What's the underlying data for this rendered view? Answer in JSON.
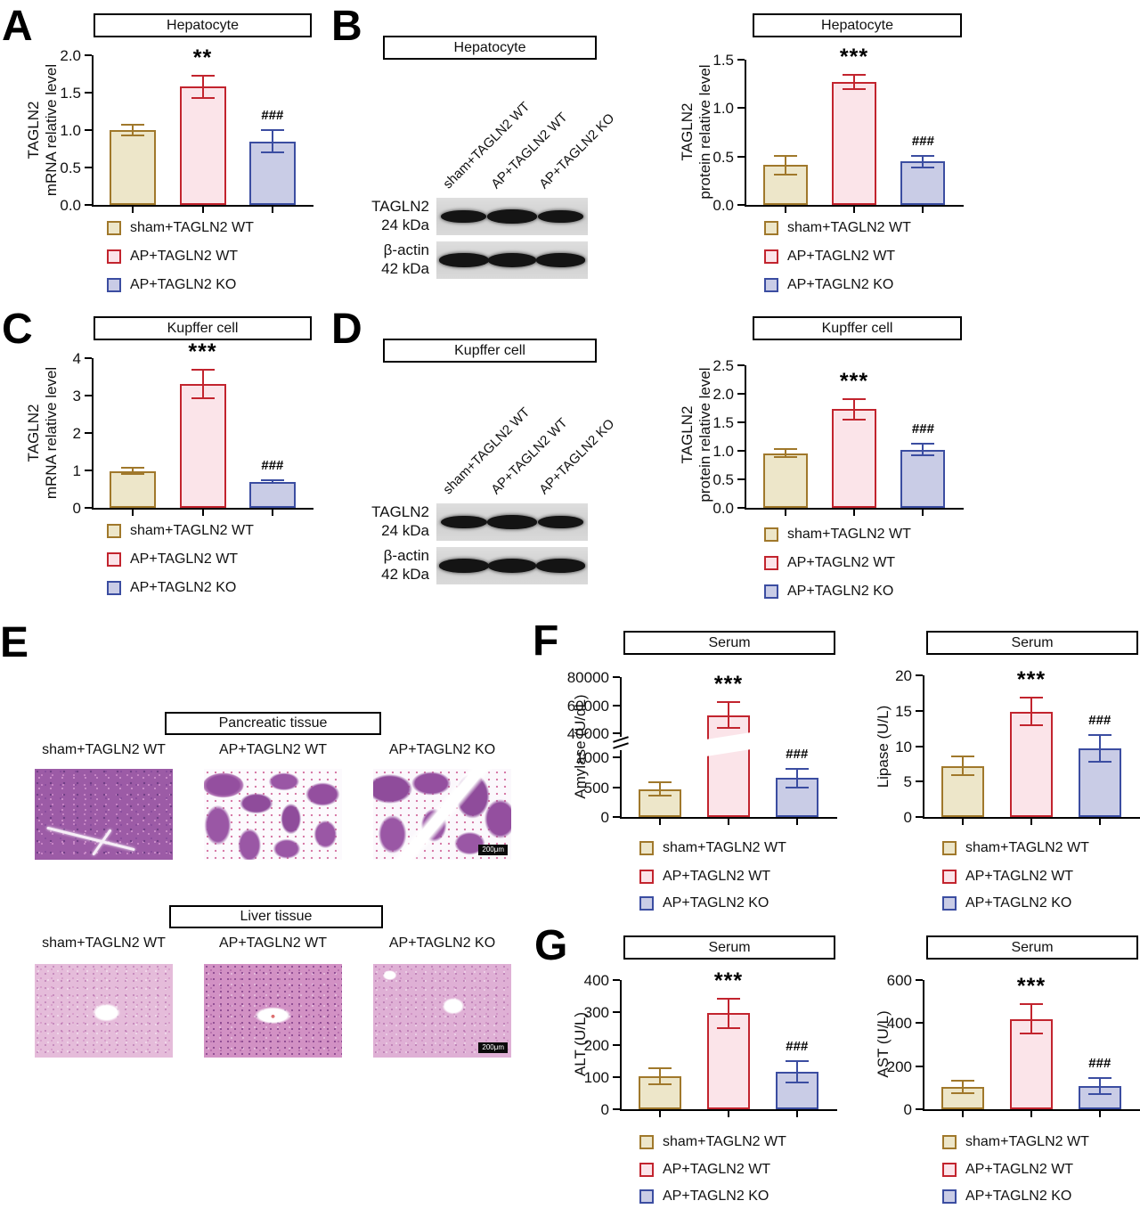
{
  "figure": {
    "panel_letters": {
      "A": "A",
      "B": "B",
      "C": "C",
      "D": "D",
      "E": "E",
      "F": "F",
      "G": "G"
    }
  },
  "groups": [
    {
      "label": "sham+TAGLN2 WT",
      "fill": "#EDE6C9",
      "border": "#A0782B"
    },
    {
      "label": "AP+TAGLN2 WT",
      "fill": "#FBE4E9",
      "border": "#C2242E"
    },
    {
      "label": "AP+TAGLN2 KO",
      "fill": "#C9CCE6",
      "border": "#3B4DA1"
    }
  ],
  "chart_data": [
    {
      "id": "A",
      "type": "bar",
      "title": "Hepatocyte",
      "ylabel_lines": [
        "TAGLN2",
        "mRNA relative level"
      ],
      "categories": [
        "sham+TAGLN2 WT",
        "AP+TAGLN2 WT",
        "AP+TAGLN2 KO"
      ],
      "values": [
        1.0,
        1.58,
        0.85
      ],
      "errors": [
        0.07,
        0.15,
        0.15
      ],
      "sig": [
        "",
        "**",
        "###"
      ],
      "yticks": [
        0,
        0.5,
        1,
        1.5,
        2
      ],
      "ytick_labels": [
        "0.0",
        "0.5",
        "1.0",
        "1.5",
        "2.0"
      ],
      "ylim": [
        0,
        2
      ],
      "legend_position": "bottom"
    },
    {
      "id": "B",
      "type": "bar",
      "title": "Hepatocyte",
      "ylabel_lines": [
        "TAGLN2",
        "protein relative level"
      ],
      "categories": [
        "sham+TAGLN2 WT",
        "AP+TAGLN2 WT",
        "AP+TAGLN2 KO"
      ],
      "values": [
        0.41,
        1.27,
        0.45
      ],
      "errors": [
        0.1,
        0.07,
        0.06
      ],
      "sig": [
        "",
        "***",
        "###"
      ],
      "yticks": [
        0,
        0.5,
        1,
        1.5
      ],
      "ytick_labels": [
        "0.0",
        "0.5",
        "1.0",
        "1.5"
      ],
      "ylim": [
        0,
        1.5
      ],
      "legend_position": "bottom"
    },
    {
      "id": "C",
      "type": "bar",
      "title": "Kupffer cell",
      "ylabel_lines": [
        "TAGLN2",
        "mRNA relative level"
      ],
      "categories": [
        "sham+TAGLN2 WT",
        "AP+TAGLN2 WT",
        "AP+TAGLN2 KO"
      ],
      "values": [
        0.98,
        3.3,
        0.7
      ],
      "errors": [
        0.08,
        0.38,
        0.04
      ],
      "sig": [
        "",
        "***",
        "###"
      ],
      "yticks": [
        0,
        1,
        2,
        3,
        4
      ],
      "ytick_labels": [
        "0",
        "1",
        "2",
        "3",
        "4"
      ],
      "ylim": [
        0,
        4
      ],
      "legend_position": "bottom"
    },
    {
      "id": "D",
      "type": "bar",
      "title": "Kupffer cell",
      "ylabel_lines": [
        "TAGLN2",
        "protein relative level"
      ],
      "categories": [
        "sham+TAGLN2 WT",
        "AP+TAGLN2 WT",
        "AP+TAGLN2 KO"
      ],
      "values": [
        0.96,
        1.73,
        1.02
      ],
      "errors": [
        0.07,
        0.18,
        0.1
      ],
      "sig": [
        "",
        "***",
        "###"
      ],
      "yticks": [
        0,
        0.5,
        1,
        1.5,
        2,
        2.5
      ],
      "ytick_labels": [
        "0.0",
        "0.5",
        "1.0",
        "1.5",
        "2.0",
        "2.5"
      ],
      "ylim": [
        0,
        2.5
      ],
      "legend_position": "bottom"
    },
    {
      "id": "F-amylase",
      "type": "bar",
      "title": "Serum",
      "ylabel_lines": [
        "Amylase (U/dL)"
      ],
      "categories": [
        "sham+TAGLN2 WT",
        "AP+TAGLN2 WT",
        "AP+TAGLN2 KO"
      ],
      "values": [
        470,
        53000,
        650
      ],
      "errors": [
        110,
        9000,
        150
      ],
      "sig": [
        "",
        "***",
        "###"
      ],
      "yticks": [
        0,
        500,
        1000,
        40000,
        60000,
        80000
      ],
      "ytick_labels": [
        "0",
        "500",
        "1000",
        "40000",
        "60000",
        "80000"
      ],
      "ylim": [
        0,
        80000
      ],
      "axis_break": {
        "lower_lim": [
          0,
          1000
        ],
        "upper_lim": [
          40000,
          80000
        ]
      },
      "legend_position": "bottom"
    },
    {
      "id": "F-lipase",
      "type": "bar",
      "title": "Serum",
      "ylabel_lines": [
        "Lipase (U/L)"
      ],
      "categories": [
        "sham+TAGLN2 WT",
        "AP+TAGLN2 WT",
        "AP+TAGLN2 KO"
      ],
      "values": [
        7.2,
        14.9,
        9.7
      ],
      "errors": [
        1.3,
        2.0,
        1.9
      ],
      "sig": [
        "",
        "***",
        "###"
      ],
      "yticks": [
        0,
        5,
        10,
        15,
        20
      ],
      "ytick_labels": [
        "0",
        "5",
        "10",
        "15",
        "20"
      ],
      "ylim": [
        0,
        20
      ],
      "legend_position": "bottom"
    },
    {
      "id": "G-alt",
      "type": "bar",
      "title": "Serum",
      "ylabel_lines": [
        "ALT (U/L)"
      ],
      "categories": [
        "sham+TAGLN2 WT",
        "AP+TAGLN2 WT",
        "AP+TAGLN2 KO"
      ],
      "values": [
        102,
        297,
        116
      ],
      "errors": [
        25,
        45,
        32
      ],
      "sig": [
        "",
        "***",
        "###"
      ],
      "yticks": [
        0,
        100,
        200,
        300,
        400
      ],
      "ytick_labels": [
        "0",
        "100",
        "200",
        "300",
        "400"
      ],
      "ylim": [
        0,
        400
      ],
      "legend_position": "bottom"
    },
    {
      "id": "G-ast",
      "type": "bar",
      "title": "Serum",
      "ylabel_lines": [
        "AST (U/L)"
      ],
      "categories": [
        "sham+TAGLN2 WT",
        "AP+TAGLN2 WT",
        "AP+TAGLN2 KO"
      ],
      "values": [
        103,
        420,
        107
      ],
      "errors": [
        30,
        68,
        38
      ],
      "sig": [
        "",
        "***",
        "###"
      ],
      "yticks": [
        0,
        200,
        400,
        600
      ],
      "ytick_labels": [
        "0",
        "200",
        "400",
        "600"
      ],
      "ylim": [
        0,
        600
      ],
      "legend_position": "bottom"
    }
  ],
  "blots": [
    {
      "panel": "B",
      "title": "Hepatocyte",
      "lane_labels": [
        "sham+TAGLN2 WT",
        "AP+TAGLN2 WT",
        "AP+TAGLN2 KO"
      ],
      "rows": [
        {
          "protein": "TAGLN2",
          "mw": "24 kDa",
          "intensities": [
            0.78,
            1.0,
            0.8
          ]
        },
        {
          "protein": "β-actin",
          "mw": "42 kDa",
          "intensities": [
            1.0,
            0.95,
            0.95
          ]
        }
      ]
    },
    {
      "panel": "D",
      "title": "Kupffer cell",
      "lane_labels": [
        "sham+TAGLN2 WT",
        "AP+TAGLN2 WT",
        "AP+TAGLN2 KO"
      ],
      "rows": [
        {
          "protein": "TAGLN2",
          "mw": "24 kDa",
          "intensities": [
            0.85,
            1.0,
            0.8
          ]
        },
        {
          "protein": "β-actin",
          "mw": "42 kDa",
          "intensities": [
            1.0,
            0.95,
            0.95
          ]
        }
      ]
    }
  ],
  "histology": {
    "sections": [
      {
        "title": "Pancreatic tissue",
        "images": [
          {
            "label": "sham+TAGLN2 WT",
            "style": "h-pan-solid"
          },
          {
            "label": "AP+TAGLN2 WT",
            "style": "h-pan-frag"
          },
          {
            "label": "AP+TAGLN2 KO",
            "style": "h-pan-frag2",
            "scale_bar": "200μm"
          }
        ]
      },
      {
        "title": "Liver tissue",
        "images": [
          {
            "label": "sham+TAGLN2 WT",
            "style": "h-liv-sham"
          },
          {
            "label": "AP+TAGLN2 WT",
            "style": "h-liv-apwt"
          },
          {
            "label": "AP+TAGLN2 KO",
            "style": "h-liv-apko",
            "scale_bar": "200μm"
          }
        ]
      }
    ]
  }
}
